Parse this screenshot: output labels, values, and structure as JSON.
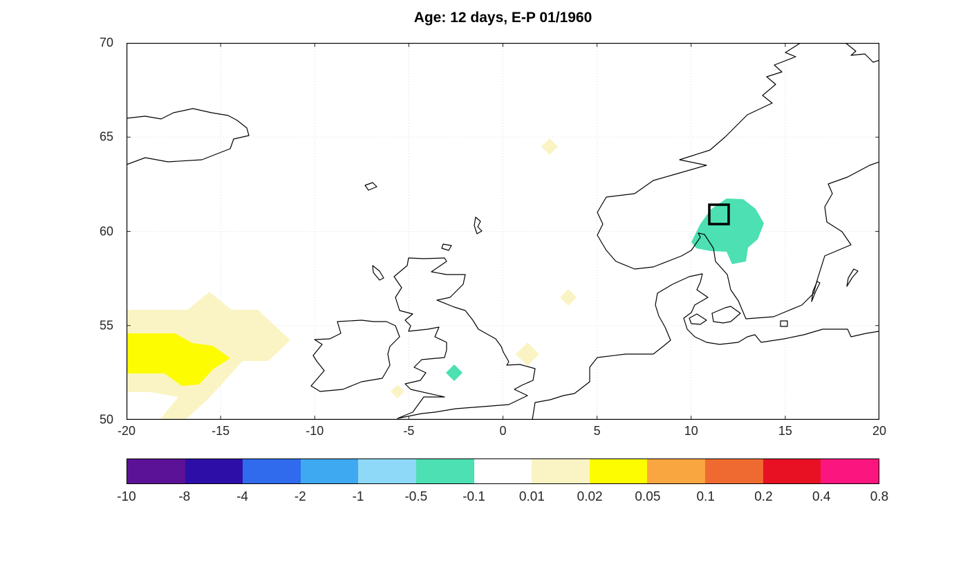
{
  "chart_data": {
    "type": "heatmap",
    "title": "Age: 12 days, E-P 01/1960",
    "description": "Filled-contour E-P (evaporation minus precipitation) field over the North Atlantic / Scandinavia map region with coastlines and a source-region square marker",
    "x_axis": {
      "label": "",
      "tick_labels": [
        "-20",
        "-15",
        "-10",
        "-5",
        "0",
        "5",
        "10",
        "15",
        "20"
      ],
      "range": [
        -20,
        20
      ],
      "unit": "degrees longitude"
    },
    "y_axis": {
      "label": "",
      "tick_labels": [
        "70",
        "65",
        "60",
        "55",
        "50"
      ],
      "range": [
        50,
        70
      ],
      "unit": "degrees latitude"
    },
    "grid": true,
    "grid_style": "dotted",
    "palette": {
      "teal": "#4ce0b2",
      "pale_yellow": "#faf4c4",
      "yellow": "#fdfc00",
      "coastline": "#000000",
      "marker": "#000000",
      "gridline": "#dcdcdc"
    },
    "colorbar": {
      "orientation": "horizontal",
      "position": "below plot",
      "tick_labels": [
        "-10",
        "-8",
        "-4",
        "-2",
        "-1",
        "-0.5",
        "-0.1",
        "0.01",
        "0.02",
        "0.05",
        "0.1",
        "0.2",
        "0.4",
        "0.8"
      ],
      "colors": [
        "#5c1296",
        "#2d0fa8",
        "#2f6bec",
        "#3ea8f0",
        "#8fd9f8",
        "#4ce0b2",
        "#ffffff",
        "#faf4c4",
        "#fdfc00",
        "#f9a540",
        "#ef6a30",
        "#e81123",
        "#fb157e"
      ]
    },
    "features": [
      {
        "type": "filled_region",
        "value_bin": "-0.5 to -0.1",
        "color_name": "teal",
        "lon_range": [
          10.0,
          13.9
        ],
        "lat_range": [
          58.3,
          61.9
        ],
        "location": "southern Norway / Sweden"
      },
      {
        "type": "marker_square",
        "lon": 11.5,
        "lat": 60.9,
        "location": "inside teal region"
      },
      {
        "type": "filled_region",
        "value_bin": "0.02 to 0.05",
        "color_name": "yellow",
        "lon_range": [
          -20,
          -14.5
        ],
        "lat_range": [
          52.3,
          54.6
        ],
        "location": "North Atlantic, west edge"
      },
      {
        "type": "filled_region",
        "value_bin": "0.01 to 0.02",
        "color_name": "pale_yellow",
        "lon_range": [
          -20,
          -11.3
        ],
        "lat_range": [
          50,
          56.8
        ],
        "location": "North Atlantic halo around yellow region"
      },
      {
        "type": "cell",
        "value_bin": "0.01 to 0.02",
        "color_name": "pale_yellow",
        "lon": 2.5,
        "lat": 64.5
      },
      {
        "type": "cell",
        "value_bin": "0.01 to 0.02",
        "color_name": "pale_yellow",
        "lon": 3.5,
        "lat": 56.5
      },
      {
        "type": "cell",
        "value_bin": "0.01 to 0.02",
        "color_name": "pale_yellow",
        "lon": 1.3,
        "lat": 53.5
      },
      {
        "type": "cell",
        "value_bin": "0.01 to 0.02",
        "color_name": "pale_yellow",
        "lon": -4.6,
        "lat": 51.5
      },
      {
        "type": "cell",
        "value_bin": "-0.5 to -0.1",
        "color_name": "teal",
        "lon": -2.6,
        "lat": 52.5
      }
    ]
  }
}
